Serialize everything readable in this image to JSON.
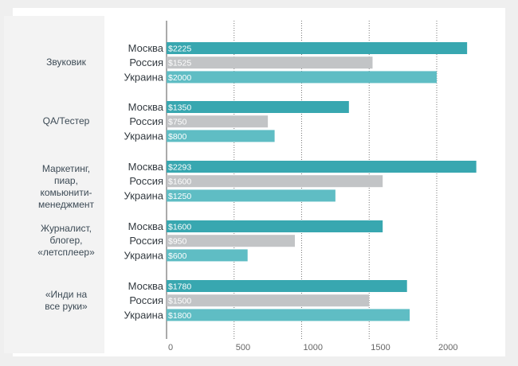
{
  "chart_data": {
    "type": "bar",
    "orientation": "horizontal",
    "categories": [
      {
        "label": "Звуковик",
        "rows": [
          {
            "name": "Москва",
            "value": 2225,
            "label": "$2225"
          },
          {
            "name": "Россия",
            "value": 1525,
            "label": "$1525"
          },
          {
            "name": "Украина",
            "value": 2000,
            "label": "$2000"
          }
        ]
      },
      {
        "label": "QA/Тестер",
        "rows": [
          {
            "name": "Москва",
            "value": 1350,
            "label": "$1350"
          },
          {
            "name": "Россия",
            "value": 750,
            "label": "$750"
          },
          {
            "name": "Украина",
            "value": 800,
            "label": "$800"
          }
        ]
      },
      {
        "label": "Маркетинг,\nпиар,\nкомьюнити-менеджмент",
        "rows": [
          {
            "name": "Москва",
            "value": 2293,
            "label": "$2293"
          },
          {
            "name": "Россия",
            "value": 1600,
            "label": "$1600"
          },
          {
            "name": "Украина",
            "value": 1250,
            "label": "$1250"
          }
        ]
      },
      {
        "label": "Журналист,\nблогер,\n«летсплеер»",
        "rows": [
          {
            "name": "Москва",
            "value": 1600,
            "label": "$1600"
          },
          {
            "name": "Россия",
            "value": 950,
            "label": "$950"
          },
          {
            "name": "Украина",
            "value": 600,
            "label": "$600"
          }
        ]
      },
      {
        "label": "«Инди на\nвсе руки»",
        "rows": [
          {
            "name": "Москва",
            "value": 1780,
            "label": "$1780"
          },
          {
            "name": "Россия",
            "value": 1500,
            "label": "$1500"
          },
          {
            "name": "Украина",
            "value": 1800,
            "label": "$1800"
          }
        ]
      }
    ],
    "xlim": [
      0,
      2300
    ],
    "x_ticks": [
      0,
      500,
      1000,
      1500,
      2000
    ],
    "x_tick_labels": [
      "0",
      "500",
      "1000",
      "1500",
      "2000"
    ],
    "grid": "vertical-dotted",
    "colors": {
      "Москва": "#38a7b0",
      "Россия": "#c2c4c6",
      "Украина": "#5fbdc4"
    }
  }
}
